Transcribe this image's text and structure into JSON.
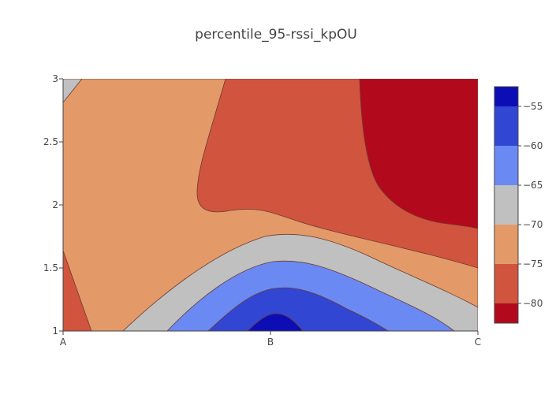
{
  "chart_data": {
    "type": "contour",
    "title": "percentile_95-rssi_kpOU",
    "x": {
      "categories": [
        "A",
        "B",
        "C"
      ],
      "range": [
        0,
        2
      ]
    },
    "y": {
      "tick_labels": [
        "1",
        "1.5",
        "2",
        "2.5",
        "3"
      ],
      "ticks": [
        1,
        1.5,
        2,
        2.5,
        3
      ],
      "range": [
        1,
        3
      ]
    },
    "contour_levels": [
      -55,
      -60,
      -65,
      -70,
      -75,
      -80
    ],
    "colorbar": {
      "tick_labels": [
        "−55",
        "−60",
        "−65",
        "−70",
        "−75",
        "−80"
      ],
      "ticks": [
        -55,
        -60,
        -65,
        -70,
        -75,
        -80
      ],
      "band_colors": [
        "#0d0db5",
        "#3246d4",
        "#6b89f2",
        "#c0c0c0",
        "#e39a68",
        "#d1543f",
        "#b20a1c"
      ]
    },
    "z_matrix_approx": [
      [
        -76,
        -53,
        -68
      ],
      [
        -74,
        -63,
        -70
      ],
      [
        -73,
        -77,
        -76
      ],
      [
        -72,
        -79,
        -80.5
      ],
      [
        -69,
        -78,
        -82
      ]
    ]
  }
}
